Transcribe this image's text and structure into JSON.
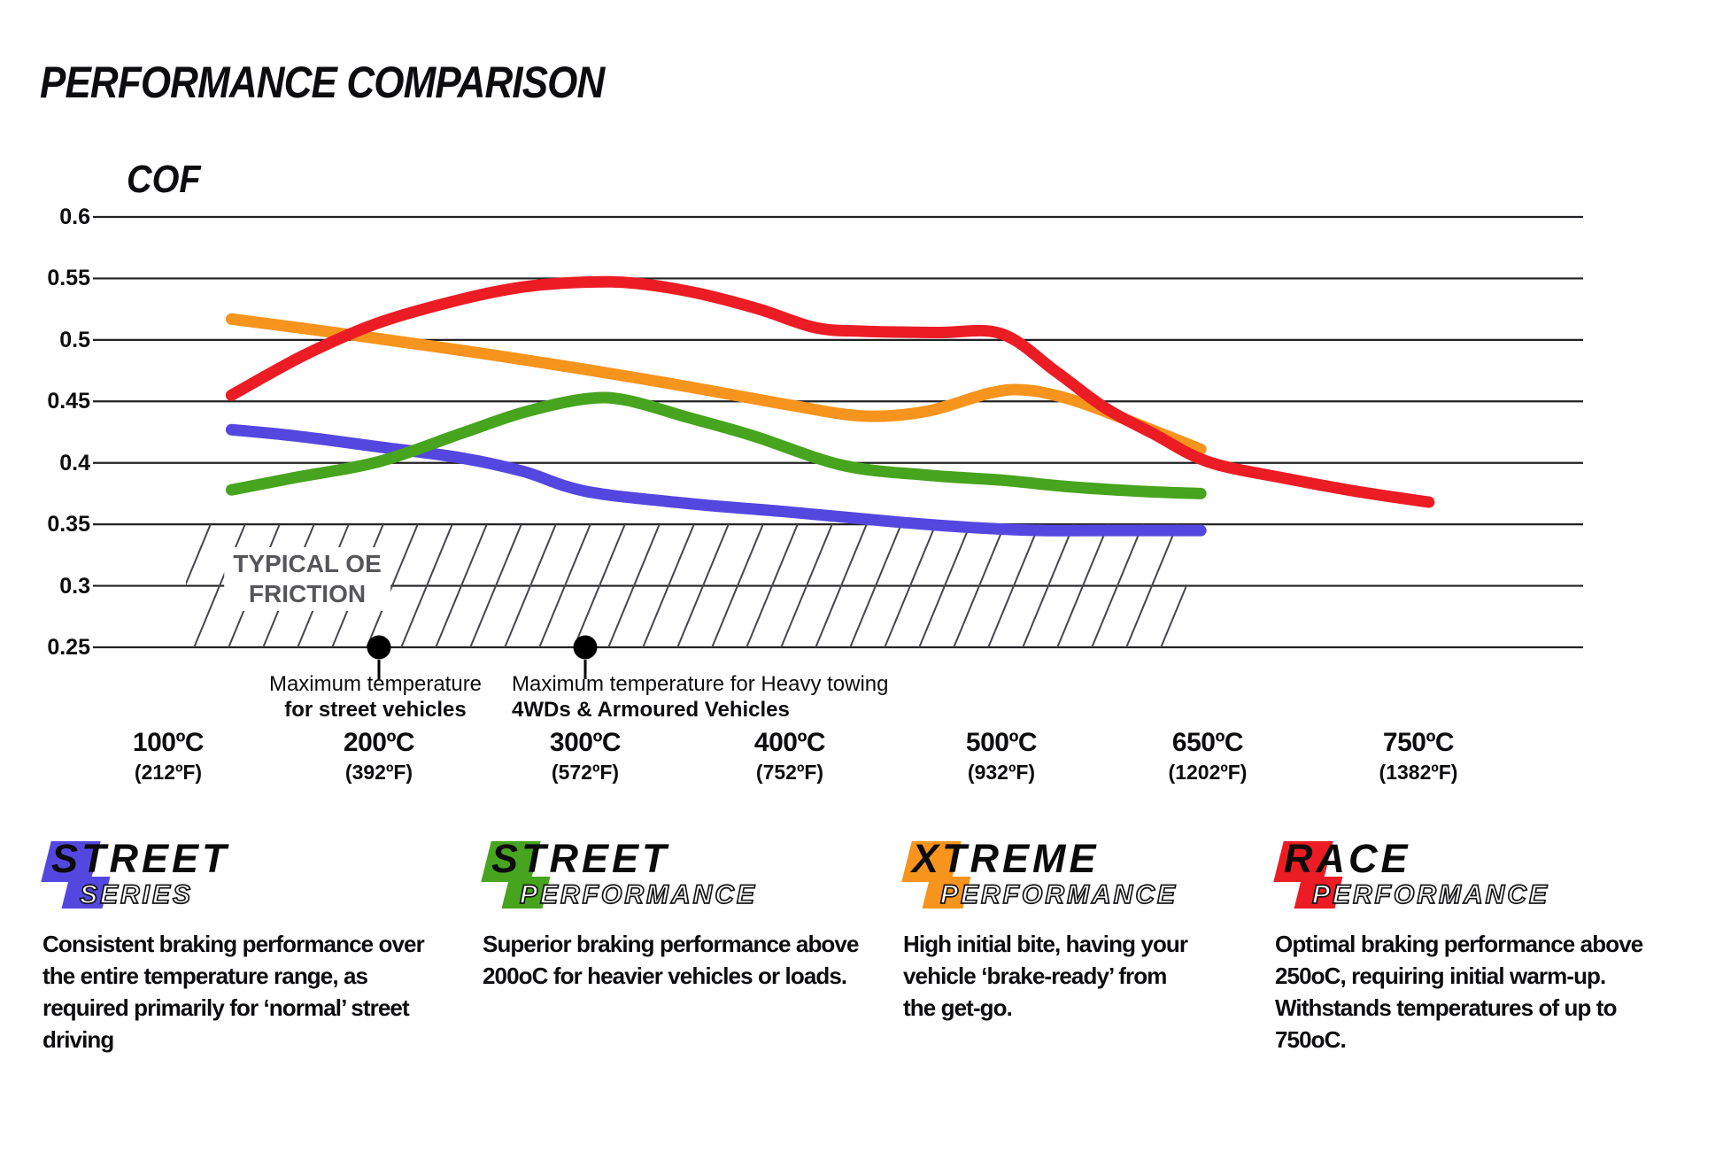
{
  "page_title": "PERFORMANCE COMPARISON",
  "y_axis": {
    "label": "COF",
    "ticks": [
      "0.6",
      "0.55",
      "0.5",
      "0.45",
      "0.4",
      "0.35",
      "0.3",
      "0.25"
    ]
  },
  "x_axis": {
    "ticks": [
      {
        "c": "100ºC",
        "f": "(212ºF)"
      },
      {
        "c": "200ºC",
        "f": "(392ºF)"
      },
      {
        "c": "300ºC",
        "f": "(572ºF)"
      },
      {
        "c": "400ºC",
        "f": "(752ºF)"
      },
      {
        "c": "500ºC",
        "f": "(932ºF)"
      },
      {
        "c": "650ºC",
        "f": "(1202ºF)"
      },
      {
        "c": "750ºC",
        "f": "(1382ºF)"
      }
    ]
  },
  "oe_zone_label": {
    "line1": "TYPICAL OE",
    "line2": "FRICTION"
  },
  "annotations": [
    {
      "line1": "Maximum temperature",
      "line2": "for street vehicles"
    },
    {
      "line1": "Maximum temperature for Heavy towing",
      "line2": "4WDs & Armoured Vehicles"
    }
  ],
  "legend": [
    {
      "title": "STREET",
      "subtitle": "SERIES",
      "color": "#5447E0",
      "description": "Consistent braking performance over the entire temperature range, as required primarily for ‘normal’ street driving"
    },
    {
      "title": "STREET",
      "subtitle": "PERFORMANCE",
      "color": "#47A41E",
      "description": "Superior braking performance above 200oC for heavier vehicles or loads."
    },
    {
      "title": "XTREME",
      "subtitle": "PERFORMANCE",
      "color": "#F7941E",
      "description": "High initial bite, having your vehicle ‘brake-ready’ from the get-go."
    },
    {
      "title": "RACE",
      "subtitle": "PERFORMANCE",
      "color": "#EC1C24",
      "description": "Optimal braking performance above 250oC, requiring initial warm-up. Withstands temperatures of up to 750oC."
    }
  ],
  "chart_data": {
    "type": "line",
    "title": "PERFORMANCE COMPARISON",
    "ylabel": "COF",
    "ylim": [
      0.25,
      0.6
    ],
    "y_gridlines": [
      0.6,
      0.55,
      0.5,
      0.45,
      0.4,
      0.35,
      0.3,
      0.25
    ],
    "x_categories_c": [
      100,
      200,
      300,
      400,
      500,
      650,
      750
    ],
    "x_categories_f": [
      212,
      392,
      572,
      752,
      932,
      1202,
      1382
    ],
    "grid": true,
    "legend_position": "bottom",
    "series": [
      {
        "name": "Street Series",
        "color": "#5447E0",
        "points": [
          [
            130,
            0.427
          ],
          [
            160,
            0.422
          ],
          [
            200,
            0.413
          ],
          [
            240,
            0.404
          ],
          [
            270,
            0.393
          ],
          [
            300,
            0.377
          ],
          [
            350,
            0.367
          ],
          [
            400,
            0.36
          ],
          [
            450,
            0.352
          ],
          [
            490,
            0.347
          ],
          [
            530,
            0.345
          ],
          [
            590,
            0.345
          ],
          [
            645,
            0.345
          ]
        ]
      },
      {
        "name": "Street Performance",
        "color": "#47A41E",
        "points": [
          [
            130,
            0.378
          ],
          [
            160,
            0.388
          ],
          [
            200,
            0.401
          ],
          [
            240,
            0.424
          ],
          [
            270,
            0.441
          ],
          [
            300,
            0.452
          ],
          [
            320,
            0.451
          ],
          [
            350,
            0.437
          ],
          [
            382,
            0.422
          ],
          [
            425,
            0.398
          ],
          [
            465,
            0.39
          ],
          [
            500,
            0.386
          ],
          [
            545,
            0.381
          ],
          [
            600,
            0.377
          ],
          [
            645,
            0.375
          ]
        ]
      },
      {
        "name": "Xtreme Performance",
        "color": "#F7941E",
        "points": [
          [
            130,
            0.517
          ],
          [
            170,
            0.508
          ],
          [
            200,
            0.501
          ],
          [
            250,
            0.489
          ],
          [
            300,
            0.476
          ],
          [
            350,
            0.462
          ],
          [
            400,
            0.447
          ],
          [
            435,
            0.438
          ],
          [
            465,
            0.442
          ],
          [
            495,
            0.457
          ],
          [
            520,
            0.459
          ],
          [
            555,
            0.45
          ],
          [
            600,
            0.431
          ],
          [
            645,
            0.411
          ]
        ]
      },
      {
        "name": "Race Performance",
        "color": "#EC1C24",
        "points": [
          [
            130,
            0.455
          ],
          [
            165,
            0.488
          ],
          [
            200,
            0.514
          ],
          [
            240,
            0.533
          ],
          [
            270,
            0.543
          ],
          [
            300,
            0.547
          ],
          [
            325,
            0.546
          ],
          [
            355,
            0.538
          ],
          [
            385,
            0.525
          ],
          [
            412,
            0.51
          ],
          [
            435,
            0.507
          ],
          [
            470,
            0.506
          ],
          [
            500,
            0.505
          ],
          [
            540,
            0.474
          ],
          [
            575,
            0.445
          ],
          [
            610,
            0.424
          ],
          [
            650,
            0.401
          ],
          [
            685,
            0.388
          ],
          [
            720,
            0.377
          ],
          [
            755,
            0.368
          ]
        ]
      }
    ],
    "oe_zone": {
      "label": "TYPICAL OE FRICTION",
      "cof_range": [
        0.25,
        0.35
      ],
      "temp_range_c": [
        108,
        640
      ]
    },
    "markers": [
      {
        "temp_c": 200,
        "cof": 0.25,
        "label": "Maximum temperature for street vehicles"
      },
      {
        "temp_c": 300,
        "cof": 0.25,
        "label": "Maximum temperature for Heavy towing 4WDs & Armoured Vehicles"
      }
    ]
  }
}
